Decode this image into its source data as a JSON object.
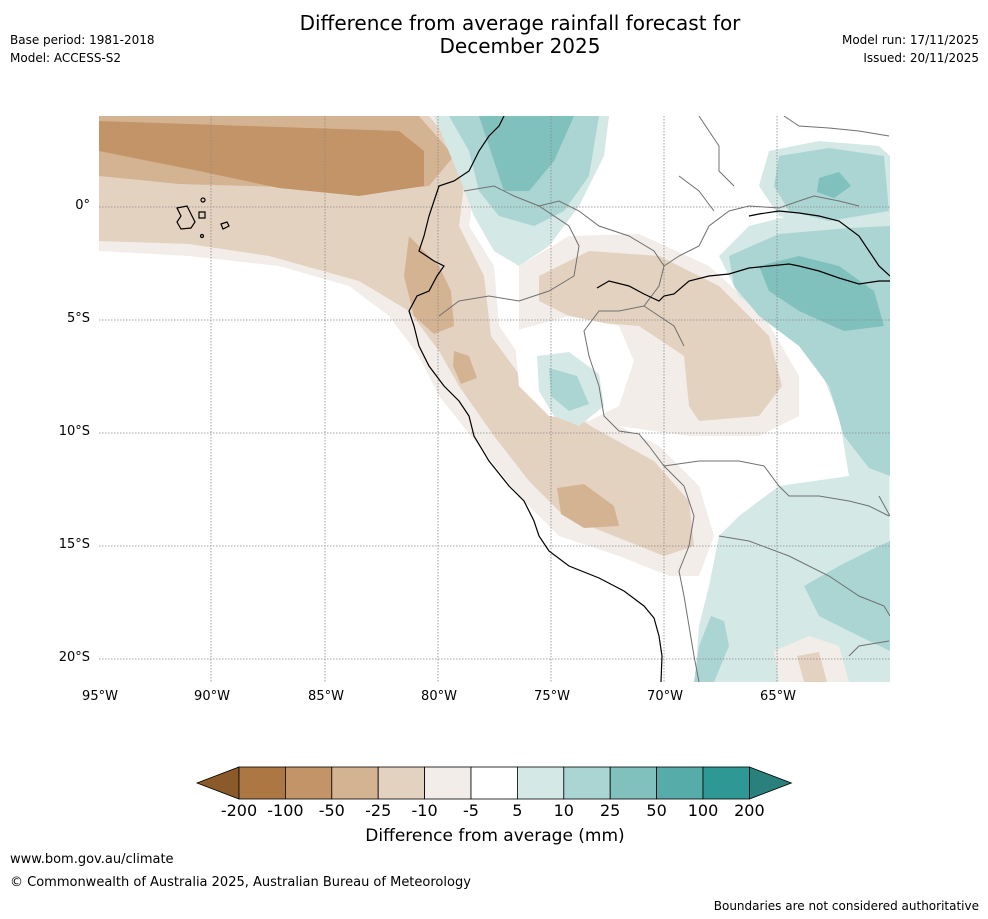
{
  "header": {
    "title_line1": "Difference from average rainfall forecast for",
    "title_line2": "December 2025",
    "base_period": "Base period: 1981-2018",
    "model": "Model: ACCESS-S2",
    "model_run": "Model run: 17/11/2025",
    "issued": "Issued: 20/11/2025"
  },
  "map": {
    "lat_labels": [
      "0°",
      "5°S",
      "10°S",
      "15°S",
      "20°S"
    ],
    "lon_labels": [
      "95°W",
      "90°W",
      "85°W",
      "80°W",
      "75°W",
      "70°W",
      "65°W"
    ]
  },
  "colorbar": {
    "labels": [
      "-200",
      "-100",
      "-50",
      "-25",
      "-10",
      "-5",
      "5",
      "10",
      "25",
      "50",
      "100",
      "200"
    ],
    "colors": [
      "#8a5a2b",
      "#ad7744",
      "#c29468",
      "#d4b393",
      "#e4d2c0",
      "#f2ede8",
      "#ffffff",
      "#d4e8e6",
      "#aad5d3",
      "#80c0bd",
      "#56aca9",
      "#2e9994",
      "#2a807c"
    ],
    "title": "Difference from average (mm)"
  },
  "footer": {
    "website": "www.bom.gov.au/climate",
    "copyright": "© Commonwealth of Australia 2025, Australian Bureau of Meteorology",
    "disclaimer": "Boundaries are not considered authoritative"
  }
}
